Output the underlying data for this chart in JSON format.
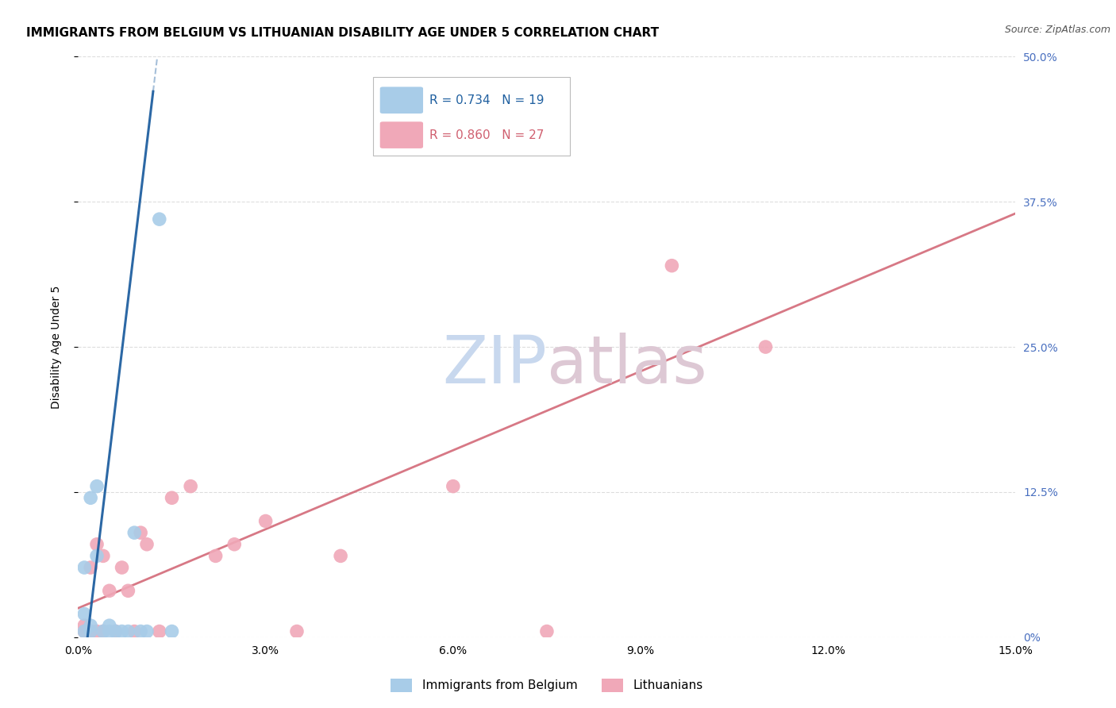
{
  "title": "IMMIGRANTS FROM BELGIUM VS LITHUANIAN DISABILITY AGE UNDER 5 CORRELATION CHART",
  "source": "Source: ZipAtlas.com",
  "ylabel": "Disability Age Under 5",
  "xlim": [
    0.0,
    0.15
  ],
  "ylim": [
    0.0,
    0.5
  ],
  "xticks": [
    0.0,
    0.03,
    0.06,
    0.09,
    0.12,
    0.15
  ],
  "xtick_labels": [
    "0.0%",
    "3.0%",
    "6.0%",
    "9.0%",
    "12.0%",
    "15.0%"
  ],
  "yticks": [
    0.0,
    0.125,
    0.25,
    0.375,
    0.5
  ],
  "ytick_labels": [
    "0%",
    "12.5%",
    "25.0%",
    "37.5%",
    "50.0%"
  ],
  "belgium_x": [
    0.001,
    0.001,
    0.001,
    0.002,
    0.002,
    0.002,
    0.003,
    0.003,
    0.004,
    0.005,
    0.005,
    0.006,
    0.007,
    0.008,
    0.009,
    0.01,
    0.011,
    0.013,
    0.015
  ],
  "belgium_y": [
    0.005,
    0.02,
    0.06,
    0.005,
    0.01,
    0.12,
    0.07,
    0.13,
    0.005,
    0.005,
    0.01,
    0.005,
    0.005,
    0.005,
    0.09,
    0.005,
    0.005,
    0.36,
    0.005
  ],
  "lithuania_x": [
    0.001,
    0.001,
    0.002,
    0.002,
    0.003,
    0.003,
    0.004,
    0.004,
    0.005,
    0.006,
    0.007,
    0.008,
    0.009,
    0.01,
    0.011,
    0.013,
    0.015,
    0.018,
    0.022,
    0.025,
    0.03,
    0.035,
    0.042,
    0.06,
    0.075,
    0.095,
    0.11
  ],
  "lithuania_y": [
    0.005,
    0.01,
    0.005,
    0.06,
    0.005,
    0.08,
    0.005,
    0.07,
    0.04,
    0.005,
    0.06,
    0.04,
    0.005,
    0.09,
    0.08,
    0.005,
    0.12,
    0.13,
    0.07,
    0.08,
    0.1,
    0.005,
    0.07,
    0.13,
    0.005,
    0.32,
    0.25
  ],
  "belgium_color": "#a8cce8",
  "lithuania_color": "#f0a8b8",
  "belgium_line_color": "#2060a0",
  "lithuania_line_color": "#d06070",
  "bel_line_x0": 0.0015,
  "bel_line_y0": 0.0,
  "bel_line_x1": 0.012,
  "bel_line_y1": 0.47,
  "lith_line_x0": 0.0,
  "lith_line_y0": 0.025,
  "lith_line_x1": 0.15,
  "lith_line_y1": 0.365,
  "watermark_zip_color": "#c8d8ee",
  "watermark_atlas_color": "#ddc8d4",
  "background_color": "#ffffff",
  "grid_color": "#dddddd",
  "right_ytick_color": "#4a70c0",
  "title_fontsize": 11,
  "axis_label_fontsize": 10,
  "tick_fontsize": 10,
  "source_fontsize": 9,
  "legend_R_bel": "R = 0.734",
  "legend_N_bel": "N = 19",
  "legend_R_lith": "R = 0.860",
  "legend_N_lith": "N = 27",
  "legend_label_bel": "Immigrants from Belgium",
  "legend_label_lith": "Lithuanians"
}
